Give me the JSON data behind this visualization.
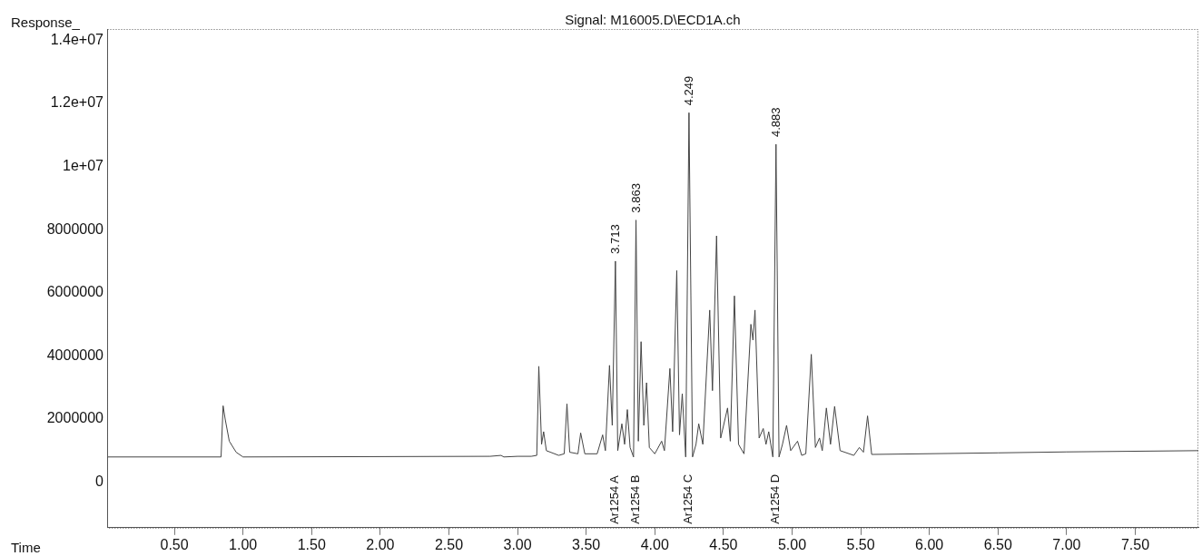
{
  "chart_data": {
    "type": "line",
    "title": "Signal: M16005.D\\ECD1A.ch",
    "xlabel": "Time",
    "ylabel": "Response_",
    "xlim": [
      0.01,
      7.96
    ],
    "ylim": [
      -1440000,
      14350000
    ],
    "xticks": [
      {
        "value": 0.5,
        "label": "0.50"
      },
      {
        "value": 1,
        "label": "1.00"
      },
      {
        "value": 1.5,
        "label": "1.50"
      },
      {
        "value": 2,
        "label": "2.00"
      },
      {
        "value": 2.5,
        "label": "2.50"
      },
      {
        "value": 3,
        "label": "3.00"
      },
      {
        "value": 3.5,
        "label": "3.50"
      },
      {
        "value": 4,
        "label": "4.00"
      },
      {
        "value": 4.5,
        "label": "4.50"
      },
      {
        "value": 5,
        "label": "5.00"
      },
      {
        "value": 5.5,
        "label": "5.50"
      },
      {
        "value": 6,
        "label": "6.00"
      },
      {
        "value": 6.5,
        "label": "6.50"
      },
      {
        "value": 7,
        "label": "7.00"
      },
      {
        "value": 7.5,
        "label": "7.50"
      }
    ],
    "yticks": [
      0,
      2000000,
      4000000,
      6000000,
      8000000,
      {
        "value": 10000000,
        "label": "1e+07"
      },
      {
        "value": 12000000,
        "label": "1.2e+07"
      },
      {
        "value": 14000000,
        "label": "1.4e+07"
      }
    ],
    "grid": false,
    "legend": false,
    "marker": "none",
    "line_style": "solid",
    "series": [
      {
        "color": "#444444",
        "x": [
          0.01,
          0.84,
          0.855,
          0.87,
          0.9,
          0.95,
          1.0,
          2.8,
          2.88,
          2.9,
          3.0,
          3.1,
          3.14,
          3.155,
          3.175,
          3.19,
          3.21,
          3.3,
          3.34,
          3.36,
          3.38,
          3.44,
          3.46,
          3.49,
          3.58,
          3.62,
          3.64,
          3.67,
          3.69,
          3.713,
          3.73,
          3.76,
          3.78,
          3.8,
          3.82,
          3.845,
          3.863,
          3.88,
          3.9,
          3.92,
          3.94,
          3.96,
          4.0,
          4.05,
          4.07,
          4.11,
          4.13,
          4.16,
          4.18,
          4.2,
          4.225,
          4.249,
          4.275,
          4.3,
          4.32,
          4.35,
          4.4,
          4.42,
          4.45,
          4.48,
          4.53,
          4.55,
          4.58,
          4.61,
          4.65,
          4.7,
          4.715,
          4.73,
          4.76,
          4.79,
          4.81,
          4.83,
          4.86,
          4.883,
          4.905,
          4.93,
          4.96,
          4.99,
          5.04,
          5.07,
          5.1,
          5.14,
          5.17,
          5.2,
          5.22,
          5.25,
          5.28,
          5.31,
          5.35,
          5.45,
          5.49,
          5.52,
          5.55,
          5.58,
          6.5,
          7.0,
          7.96
        ],
        "values": [
          800000,
          800000,
          2420000,
          2000000,
          1300000,
          950000,
          800000,
          820000,
          850000,
          800000,
          820000,
          820000,
          850000,
          3670000,
          1200000,
          1600000,
          1000000,
          850000,
          900000,
          2480000,
          950000,
          900000,
          1560000,
          900000,
          900000,
          1500000,
          1000000,
          3700000,
          1800000,
          7000000,
          1000000,
          1850000,
          1200000,
          2300000,
          1100000,
          800000,
          8300000,
          1300000,
          4450000,
          1800000,
          3150000,
          1100000,
          900000,
          1300000,
          1000000,
          3600000,
          1600000,
          6700000,
          1500000,
          2800000,
          800000,
          11700000,
          800000,
          1200000,
          1850000,
          1200000,
          5450000,
          2900000,
          7800000,
          1400000,
          2350000,
          1300000,
          5900000,
          1200000,
          900000,
          5000000,
          4500000,
          5450000,
          1400000,
          1700000,
          1200000,
          1600000,
          800000,
          10700000,
          800000,
          1200000,
          1800000,
          1000000,
          1300000,
          850000,
          900000,
          4050000,
          1100000,
          1400000,
          1000000,
          2350000,
          1200000,
          2400000,
          1000000,
          850000,
          1100000,
          950000,
          2100000,
          880000,
          930000,
          960000,
          1000000
        ]
      }
    ],
    "annotations": [
      {
        "text": "3.713",
        "x": 3.713,
        "y": 7000000
      },
      {
        "text": "3.863",
        "x": 3.863,
        "y": 8300000
      },
      {
        "text": "4.249",
        "x": 4.249,
        "y": 11700000
      },
      {
        "text": "4.883",
        "x": 4.883,
        "y": 10700000
      },
      "Ar1254 A",
      "Ar1254 B",
      "Ar1254 C",
      "Ar1254 D"
    ]
  }
}
